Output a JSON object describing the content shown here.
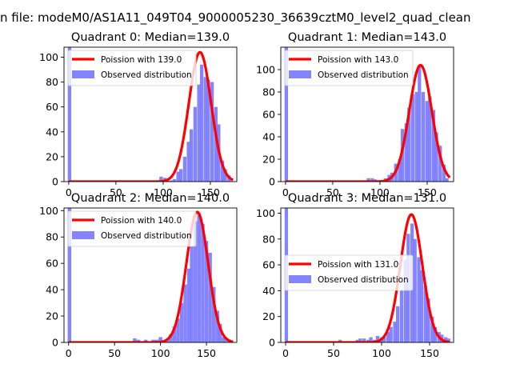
{
  "figure": {
    "suptitle": "n file: modeM0/AS1A11_049T04_9000005230_36639cztM0_level2_quad_clean",
    "colors": {
      "hist": "#7777ff",
      "fit": "#ff0000",
      "axis": "#000000",
      "legend_bg": "#ffffff"
    }
  },
  "chart_data": [
    {
      "type": "bar",
      "title": "Quadrant 0: Median=139.0",
      "xlim": [
        -5,
        178
      ],
      "ylim": [
        0,
        108
      ],
      "xticks": [
        0,
        50,
        100,
        150
      ],
      "yticks": [
        0,
        20,
        40,
        60,
        80,
        100
      ],
      "legend": [
        "Poission with 139.0",
        "Observed distribution"
      ],
      "legend_position": "upper-left",
      "bin_width": 3.63,
      "hist": [
        [
          -1,
          108
        ],
        [
          78,
          1
        ],
        [
          96,
          4
        ],
        [
          100,
          3
        ],
        [
          103,
          1
        ],
        [
          107,
          1
        ],
        [
          110,
          2
        ],
        [
          114,
          8
        ],
        [
          117,
          10
        ],
        [
          121,
          20
        ],
        [
          125,
          32
        ],
        [
          128,
          42
        ],
        [
          132,
          60
        ],
        [
          136,
          78
        ],
        [
          139,
          94
        ],
        [
          143,
          84
        ],
        [
          146,
          82
        ],
        [
          150,
          80
        ],
        [
          154,
          60
        ],
        [
          157,
          46
        ],
        [
          161,
          17
        ],
        [
          164,
          10
        ],
        [
          168,
          5
        ]
      ],
      "fit_mean": 139.0,
      "fit_peak": 104
    },
    {
      "type": "bar",
      "title": "Quadrant 1: Median=143.0",
      "xlim": [
        -5,
        178
      ],
      "ylim": [
        0,
        120
      ],
      "xticks": [
        0,
        50,
        100,
        150
      ],
      "yticks": [
        0,
        20,
        40,
        60,
        80,
        100
      ],
      "legend": [
        "Poission with 143.0",
        "Observed distribution"
      ],
      "legend_position": "upper-left",
      "bin_width": 3.63,
      "hist": [
        [
          -1,
          120
        ],
        [
          86,
          3
        ],
        [
          90,
          3
        ],
        [
          93,
          2
        ],
        [
          97,
          1
        ],
        [
          104,
          3
        ],
        [
          108,
          6
        ],
        [
          111,
          8
        ],
        [
          115,
          16
        ],
        [
          119,
          20
        ],
        [
          122,
          47
        ],
        [
          126,
          52
        ],
        [
          129,
          66
        ],
        [
          133,
          78
        ],
        [
          137,
          80
        ],
        [
          140,
          104
        ],
        [
          144,
          80
        ],
        [
          148,
          72
        ],
        [
          151,
          76
        ],
        [
          155,
          64
        ],
        [
          158,
          44
        ],
        [
          162,
          32
        ],
        [
          166,
          15
        ],
        [
          169,
          3
        ]
      ],
      "fit_mean": 143.0,
      "fit_peak": 104
    },
    {
      "type": "bar",
      "title": "Quadrant 2: Median=140.0",
      "xlim": [
        -5,
        183
      ],
      "ylim": [
        0,
        102
      ],
      "xticks": [
        0,
        50,
        100,
        150
      ],
      "yticks": [
        0,
        20,
        40,
        60,
        80,
        100
      ],
      "legend": [
        "Poission with 140.0",
        "Observed distribution"
      ],
      "legend_position": "upper-left",
      "bin_width": 3.9,
      "hist": [
        [
          -1,
          102
        ],
        [
          70,
          3
        ],
        [
          74,
          2
        ],
        [
          82,
          2
        ],
        [
          90,
          2
        ],
        [
          94,
          2
        ],
        [
          98,
          4
        ],
        [
          105,
          2
        ],
        [
          109,
          6
        ],
        [
          113,
          12
        ],
        [
          117,
          18
        ],
        [
          121,
          30
        ],
        [
          125,
          44
        ],
        [
          129,
          56
        ],
        [
          132,
          73
        ],
        [
          136,
          92
        ],
        [
          140,
          98
        ],
        [
          144,
          90
        ],
        [
          148,
          77
        ],
        [
          152,
          68
        ],
        [
          156,
          42
        ],
        [
          160,
          24
        ],
        [
          163,
          14
        ],
        [
          167,
          4
        ],
        [
          171,
          2
        ]
      ],
      "fit_mean": 140.0,
      "fit_peak": 99
    },
    {
      "type": "bar",
      "title": "Quadrant 3: Median=131.0",
      "xlim": [
        -5,
        175
      ],
      "ylim": [
        0,
        104
      ],
      "xticks": [
        0,
        50,
        100,
        150
      ],
      "yticks": [
        0,
        20,
        40,
        60,
        80,
        100
      ],
      "legend": [
        "Poission with 131.0",
        "Observed distribution"
      ],
      "legend_position": "center-left",
      "bin_width": 3.53,
      "hist": [
        [
          -1,
          104
        ],
        [
          55,
          2
        ],
        [
          73,
          2
        ],
        [
          76,
          3
        ],
        [
          80,
          3
        ],
        [
          84,
          2
        ],
        [
          87,
          4
        ],
        [
          91,
          2
        ],
        [
          94,
          5
        ],
        [
          98,
          4
        ],
        [
          101,
          4
        ],
        [
          105,
          8
        ],
        [
          108,
          12
        ],
        [
          112,
          16
        ],
        [
          115,
          28
        ],
        [
          119,
          40
        ],
        [
          123,
          64
        ],
        [
          126,
          84
        ],
        [
          130,
          92
        ],
        [
          133,
          80
        ],
        [
          137,
          66
        ],
        [
          140,
          56
        ],
        [
          144,
          44
        ],
        [
          147,
          34
        ],
        [
          151,
          20
        ],
        [
          154,
          12
        ],
        [
          158,
          8
        ],
        [
          161,
          6
        ],
        [
          165,
          4
        ],
        [
          168,
          3
        ]
      ],
      "fit_mean": 131.0,
      "fit_peak": 99
    }
  ]
}
